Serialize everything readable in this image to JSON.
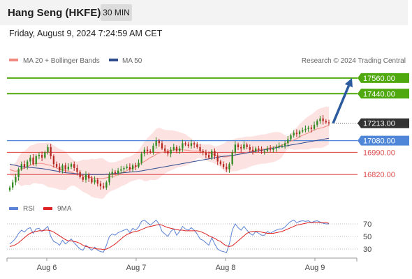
{
  "header": {
    "title": "Hang Seng (HKFE)",
    "interval": "30 MIN",
    "datetime": "Friday, August 9, 2024 7:24:59 AM CET"
  },
  "legend": {
    "ma20": "MA 20 + Bollinger Bands",
    "ma50": "MA 50",
    "watermark": "Research © 2024 Trading Central",
    "rsi": "RSI",
    "rsi_ma": "9MA"
  },
  "colors": {
    "ma20": "#f08a80",
    "ma50": "#2f4c8f",
    "bands_fill": "#fde2e2",
    "green_level": "#4fa80d",
    "blue_level": "#4f86d8",
    "red_level": "#e05050",
    "price_label": "#333333",
    "arrow": "#2b5b9e",
    "rsi": "#5b82d6",
    "rsi_ma": "#dd2222",
    "candle_up": "#2f8a1f",
    "candle_down": "#b5271f"
  },
  "chart_data": [
    {
      "type": "candlestick",
      "ylim": [
        16650,
        17650
      ],
      "x_ticks": [
        "Aug 6",
        "Aug 7",
        "Aug 8",
        "Aug 9"
      ],
      "levels": [
        {
          "value": 17560,
          "label": "17560.00",
          "kind": "resistance"
        },
        {
          "value": 17440,
          "label": "17440.00",
          "kind": "resistance"
        },
        {
          "value": 17213,
          "label": "17213.00",
          "kind": "last"
        },
        {
          "value": 17080,
          "label": "17080.00",
          "kind": "pivot"
        },
        {
          "value": 16990,
          "label": "16990.00",
          "kind": "support"
        },
        {
          "value": 16820,
          "label": "16820.00",
          "kind": "support"
        }
      ],
      "close": [
        16720,
        16760,
        16800,
        16860,
        16900,
        16880,
        16920,
        16950,
        16900,
        16960,
        16970,
        16950,
        16990,
        17030,
        16960,
        16900,
        16880,
        16850,
        16890,
        16860,
        16880,
        16900,
        16870,
        16840,
        16800,
        16780,
        16820,
        16790,
        16760,
        16780,
        16750,
        16730,
        16720,
        16760,
        16820,
        16840,
        16830,
        16850,
        16860,
        16870,
        16880,
        16860,
        16890,
        16880,
        16910,
        16980,
        17010,
        17000,
        16990,
        17040,
        17080,
        17060,
        17020,
        17000,
        16980,
        17010,
        17030,
        17000,
        17020,
        17060,
        17050,
        17040,
        17060,
        17050,
        17030,
        17000,
        16990,
        16970,
        16950,
        17000,
        16960,
        16920,
        16900,
        16880,
        16860,
        16900,
        16990,
        17050,
        17030,
        17020,
        17050,
        17030,
        17010,
        17000,
        17020,
        17010,
        17000,
        17000,
        17020,
        17010,
        17020,
        17030,
        17040,
        17040,
        17060,
        17090,
        17120,
        17140,
        17130,
        17150,
        17160,
        17170,
        17180,
        17170,
        17200,
        17230,
        17250,
        17230,
        17220,
        17213
      ],
      "ma20": [
        16860,
        16850,
        16845,
        16850,
        16860,
        16870,
        16880,
        16890,
        16900,
        16905,
        16905,
        16905,
        16900,
        16895,
        16890,
        16880,
        16870,
        16860,
        16855,
        16850,
        16845,
        16840,
        16830,
        16820,
        16815,
        16810,
        16805,
        16800,
        16795,
        16790,
        16790,
        16790,
        16790,
        16795,
        16800,
        16805,
        16810,
        16820,
        16830,
        16840,
        16850,
        16860,
        16870,
        16880,
        16895,
        16910,
        16920,
        16935,
        16950,
        16960,
        16975,
        16985,
        16990,
        16995,
        17000,
        17005,
        17008,
        17012,
        17012,
        17010,
        17008,
        17005,
        17002,
        17000,
        17000,
        17000,
        16995,
        16990,
        16985,
        16980,
        16970,
        16965,
        16960,
        16955,
        16955,
        16960,
        16965,
        16970,
        16975,
        16980,
        16985,
        16990,
        16995,
        17000,
        17005,
        17010,
        17015,
        17015,
        17020,
        17025,
        17030,
        17035,
        17040,
        17045,
        17055,
        17065,
        17075,
        17085,
        17095,
        17110,
        17120,
        17130,
        17140,
        17150,
        17160,
        17170,
        17175,
        17180,
        17190,
        17195
      ],
      "ma50": [
        16900,
        16895,
        16890,
        16885,
        16880,
        16878,
        16876,
        16874,
        16872,
        16870,
        16868,
        16865,
        16862,
        16858,
        16854,
        16850,
        16846,
        16842,
        16838,
        16834,
        16832,
        16830,
        16828,
        16826,
        16824,
        16822,
        16820,
        16820,
        16820,
        16820,
        16820,
        16820,
        16820,
        16822,
        16824,
        16826,
        16828,
        16830,
        16832,
        16834,
        16836,
        16838,
        16840,
        16842,
        16845,
        16848,
        16852,
        16856,
        16860,
        16864,
        16868,
        16872,
        16876,
        16880,
        16884,
        16888,
        16892,
        16896,
        16900,
        16904,
        16908,
        16912,
        16916,
        16920,
        16924,
        16928,
        16932,
        16936,
        16940,
        16944,
        16948,
        16952,
        16956,
        16960,
        16962,
        16964,
        16966,
        16970,
        16974,
        16978,
        16982,
        16986,
        16990,
        16994,
        16998,
        17002,
        17006,
        17010,
        17014,
        17018,
        17022,
        17026,
        17030,
        17034,
        17038,
        17042,
        17046,
        17050,
        17054,
        17058,
        17062,
        17066,
        17070,
        17074,
        17078,
        17082,
        17086,
        17090,
        17094,
        17098
      ],
      "target": 17560
    },
    {
      "type": "line",
      "name": "RSI",
      "ylim": [
        20,
        80
      ],
      "y_ticks": [
        70,
        50,
        30
      ],
      "rsi": [
        38,
        42,
        47,
        55,
        60,
        57,
        62,
        64,
        55,
        62,
        63,
        58,
        62,
        66,
        50,
        42,
        40,
        36,
        44,
        38,
        42,
        46,
        40,
        35,
        30,
        28,
        36,
        32,
        28,
        33,
        28,
        26,
        25,
        36,
        50,
        54,
        52,
        56,
        58,
        60,
        62,
        56,
        63,
        60,
        65,
        74,
        76,
        72,
        68,
        72,
        76,
        70,
        58,
        54,
        50,
        58,
        62,
        52,
        58,
        66,
        62,
        60,
        64,
        60,
        54,
        46,
        44,
        40,
        36,
        48,
        38,
        30,
        27,
        26,
        24,
        38,
        60,
        70,
        64,
        60,
        66,
        60,
        55,
        52,
        58,
        55,
        52,
        52,
        58,
        55,
        58,
        60,
        62,
        62,
        65,
        70,
        74,
        76,
        72,
        74,
        75,
        74,
        75,
        72,
        74,
        75,
        73,
        71,
        70,
        70
      ],
      "rsi_ma": [
        34,
        35,
        37,
        40,
        44,
        48,
        52,
        55,
        57,
        58,
        59,
        59,
        60,
        60,
        59,
        57,
        54,
        51,
        48,
        45,
        43,
        43,
        42,
        41,
        39,
        36,
        34,
        33,
        32,
        31,
        30,
        30,
        29,
        30,
        32,
        35,
        38,
        42,
        46,
        50,
        53,
        55,
        57,
        58,
        59,
        61,
        63,
        65,
        66,
        67,
        68,
        69,
        68,
        66,
        64,
        63,
        62,
        61,
        60,
        60,
        59,
        59,
        59,
        59,
        59,
        58,
        56,
        54,
        51,
        49,
        47,
        44,
        42,
        38,
        35,
        34,
        35,
        39,
        43,
        47,
        51,
        55,
        57,
        58,
        58,
        58,
        57,
        56,
        55,
        55,
        55,
        56,
        57,
        58,
        60,
        62,
        64,
        66,
        68,
        69,
        70,
        71,
        72,
        72,
        72,
        72,
        72,
        72,
        72,
        71
      ]
    }
  ]
}
